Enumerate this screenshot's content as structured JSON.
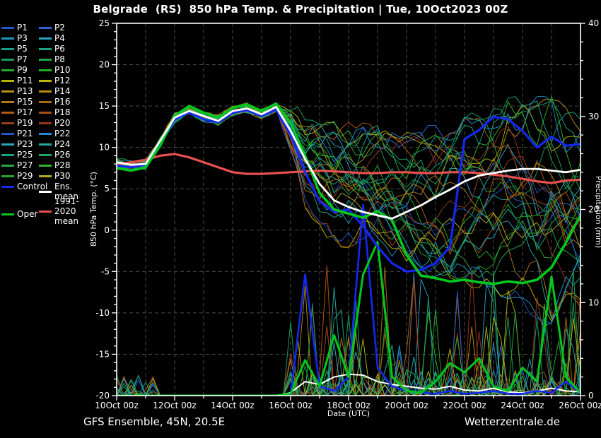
{
  "header": {
    "title": "Belgrade  (RS)  850 hPa Temp. & Precipitation | Tue, 10Oct2023 00Z"
  },
  "footer": {
    "left": "GFS Ensemble, 45N, 20.5E",
    "xlabel": "Date (UTC)",
    "right": "Wetterzentrale.de"
  },
  "legend": {
    "member_labels": [
      "P1",
      "P2",
      "P3",
      "P4",
      "P5",
      "P6",
      "P7",
      "P8",
      "P9",
      "P10",
      "P11",
      "P12",
      "P13",
      "P14",
      "P15",
      "P16",
      "P17",
      "P18",
      "P19",
      "P20",
      "P21",
      "P22",
      "P23",
      "P24",
      "P25",
      "P26",
      "P27",
      "P28",
      "P29",
      "P30"
    ],
    "member_colors": [
      "#2456c8",
      "#2e64d2",
      "#1e96be",
      "#28a0c8",
      "#14a08c",
      "#16a482",
      "#16a05a",
      "#1ea84e",
      "#28aa32",
      "#1eb41e",
      "#b4b40a",
      "#bcb400",
      "#b49214",
      "#ba8a0a",
      "#b4761e",
      "#ac6a14",
      "#b45a14",
      "#a84e14",
      "#9a3c1e",
      "#96321e",
      "#2456c8",
      "#2488cc",
      "#28a8c0",
      "#1eaca0",
      "#14a484",
      "#1ea45e",
      "#28a846",
      "#32b428",
      "#28a432",
      "#b4aa1e"
    ],
    "extras": [
      {
        "label": "Control",
        "color": "#1428f0",
        "col": 0,
        "row": 15
      },
      {
        "label": "Ens. mean",
        "color": "#ffffff",
        "col": 1,
        "row": 15
      },
      {
        "label": "1991-2020\nmean",
        "color": "#e85050",
        "col": 1,
        "row": 16.4
      },
      {
        "label": "Oper",
        "color": "#00c81e",
        "col": 0,
        "row": 17.6
      }
    ]
  },
  "chart_data": {
    "type": "line",
    "title": "Belgrade (RS) 850 hPa Temp. & Precipitation | Tue, 10Oct2023 00Z",
    "x_axis": {
      "label": "Date (UTC)",
      "start_day": 10,
      "end_day": 26,
      "minor_step_days": 1,
      "tick_days": [
        10,
        12,
        14,
        16,
        18,
        20,
        22,
        24,
        26
      ],
      "tick_labels": [
        "10Oct 00z",
        "12Oct 00z",
        "14Oct 00z",
        "16Oct 00z",
        "18Oct 00z",
        "20Oct 00z",
        "22Oct 00z",
        "24Oct 00z",
        "26Oct 00z"
      ]
    },
    "y_left": {
      "label": "850 hPa Temp. (°C)",
      "min": -20,
      "max": 25,
      "major": 5,
      "minor": 1
    },
    "y_right": {
      "label": "Precipitation (mm)",
      "min": 0,
      "max": 40,
      "major": 10,
      "minor": 2
    },
    "sample_step_days": 0.5,
    "grid": {
      "on": true,
      "color": "#4a4a44"
    },
    "series": {
      "climate_mean": {
        "name": "1991-2020 mean",
        "color": "#e85050",
        "temp": [
          8.0,
          8.2,
          8.5,
          9.0,
          9.2,
          8.8,
          8.2,
          7.6,
          7.0,
          6.8,
          6.8,
          6.9,
          7.0,
          7.1,
          7.2,
          7.1,
          7.0,
          6.9,
          6.9,
          7.0,
          7.0,
          6.9,
          6.9,
          7.0,
          7.0,
          6.9,
          6.7,
          6.5,
          6.2,
          5.9,
          5.7,
          6.0,
          6.1
        ]
      },
      "ens_mean": {
        "name": "Ens. mean",
        "color": "#ffffff",
        "temp": [
          8.2,
          7.9,
          8.0,
          10.8,
          13.6,
          14.4,
          13.8,
          13.2,
          14.4,
          14.7,
          14.0,
          14.9,
          12.0,
          8.6,
          5.6,
          3.6,
          2.8,
          2.2,
          1.8,
          1.4,
          2.2,
          3.0,
          4.0,
          4.9,
          5.9,
          6.6,
          6.9,
          7.2,
          7.4,
          7.4,
          7.2,
          7.0,
          7.3
        ],
        "precip": [
          0,
          0,
          0,
          0,
          0,
          0,
          0,
          0,
          0,
          0,
          0,
          0,
          0.3,
          1.5,
          1.2,
          2.0,
          2.3,
          2.2,
          1.5,
          1.2,
          1.0,
          0.8,
          0.7,
          1.0,
          0.6,
          0.5,
          0.8,
          0.4,
          0.3,
          0.5,
          0.8,
          0.5,
          0.4
        ]
      },
      "control": {
        "name": "Control",
        "color": "#1428f0",
        "temp": [
          7.8,
          7.6,
          7.9,
          10.5,
          13.4,
          14.2,
          13.4,
          13.0,
          14.2,
          14.5,
          13.8,
          14.6,
          11.5,
          7.0,
          3.5,
          2.2,
          2.5,
          0.5,
          -2.0,
          -4.0,
          -5.0,
          -4.8,
          -4.0,
          -2.0,
          11.0,
          12.1,
          13.7,
          13.4,
          12.0,
          10.0,
          11.3,
          10.2,
          10.4
        ],
        "precip": [
          0,
          0,
          0,
          0,
          0,
          0,
          0,
          0,
          0,
          0,
          0,
          0,
          0,
          13.0,
          1.0,
          0.5,
          2.0,
          20.5,
          3.0,
          1.0,
          0.5,
          0.3,
          0.2,
          0.5,
          0.2,
          0.3,
          0.5,
          0.2,
          0.2,
          0.5,
          0.3,
          1.5,
          0.3
        ]
      },
      "oper": {
        "name": "Oper",
        "color": "#00c81e",
        "temp": [
          7.5,
          7.2,
          7.6,
          10.2,
          13.8,
          15.0,
          14.2,
          13.6,
          14.8,
          15.2,
          14.4,
          15.3,
          13.0,
          9.0,
          4.5,
          2.5,
          2.0,
          1.5,
          2.3,
          1.2,
          -3.0,
          -5.5,
          -5.8,
          -6.2,
          -6.0,
          -6.3,
          -6.5,
          -6.2,
          -6.4,
          -6.0,
          -4.5,
          -1.5,
          1.8
        ],
        "precip": [
          0,
          0,
          0,
          0,
          0,
          0,
          0,
          0,
          0,
          0,
          0,
          0,
          0.2,
          3.8,
          1.0,
          6.5,
          2.0,
          13.0,
          16.5,
          2.0,
          0.5,
          0.3,
          1.5,
          3.5,
          2.5,
          4.0,
          1.0,
          0.5,
          3.0,
          1.5,
          12.8,
          2.0,
          0.3
        ]
      }
    },
    "ensemble_generation": {
      "count": 30,
      "seed": 12,
      "lower": [
        7.3,
        7.0,
        7.2,
        9.8,
        12.8,
        13.6,
        12.8,
        12.4,
        13.6,
        13.9,
        13.2,
        13.9,
        9.5,
        3.0,
        0.0,
        -1.5,
        -2.0,
        -2.5,
        -3.0,
        -3.5,
        -4.5,
        -5.0,
        -5.5,
        -6.0,
        -6.5,
        -7.0,
        -7.5,
        -8.5,
        -9.5,
        -11.0,
        -12.0,
        -11.0,
        -10.0
      ],
      "upper": [
        8.8,
        8.5,
        8.7,
        11.5,
        14.3,
        15.2,
        14.6,
        14.2,
        15.3,
        15.6,
        14.9,
        15.8,
        14.8,
        14.0,
        13.5,
        13.0,
        13.0,
        13.0,
        12.5,
        12.0,
        12.0,
        12.5,
        12.5,
        13.0,
        14.0,
        14.5,
        15.0,
        16.0,
        15.5,
        16.5,
        17.0,
        15.5,
        14.5
      ],
      "precip_start_day": 16,
      "precip_max": 14,
      "early_max": 2.2
    }
  }
}
